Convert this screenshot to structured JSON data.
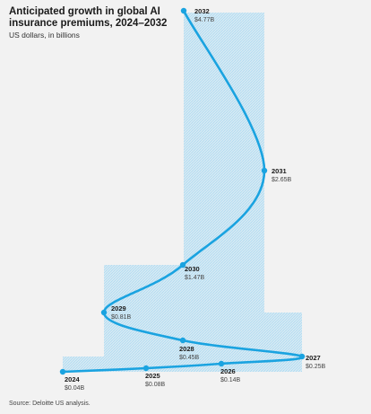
{
  "title": "Anticipated growth in global AI insurance premiums, 2024–2032",
  "subtitle": "US dollars, in billions",
  "source": "Source: Deloitte US analysis.",
  "colors": {
    "line": "#1aa3e0",
    "fill": "#9fd6f2",
    "background": "#f2f2f2"
  },
  "chart_data": {
    "type": "line",
    "title": "Anticipated growth in global AI insurance premiums, 2024–2032",
    "ylabel": "US dollars, in billions",
    "x": [
      2024,
      2025,
      2026,
      2027,
      2028,
      2029,
      2030,
      2031,
      2032
    ],
    "values": [
      0.04,
      0.08,
      0.14,
      0.25,
      0.45,
      0.81,
      1.47,
      2.65,
      4.77
    ],
    "labels": [
      {
        "year": "2024",
        "value": "$0.04B"
      },
      {
        "year": "2025",
        "value": "$0.08B"
      },
      {
        "year": "2026",
        "value": "$0.14B"
      },
      {
        "year": "2027",
        "value": "$0.25B"
      },
      {
        "year": "2028",
        "value": "$0.45B"
      },
      {
        "year": "2029",
        "value": "$0.81B"
      },
      {
        "year": "2030",
        "value": "$1.47B"
      },
      {
        "year": "2031",
        "value": "$2.65B"
      },
      {
        "year": "2032",
        "value": "$4.77B"
      }
    ],
    "grid": false,
    "legend": "none"
  }
}
